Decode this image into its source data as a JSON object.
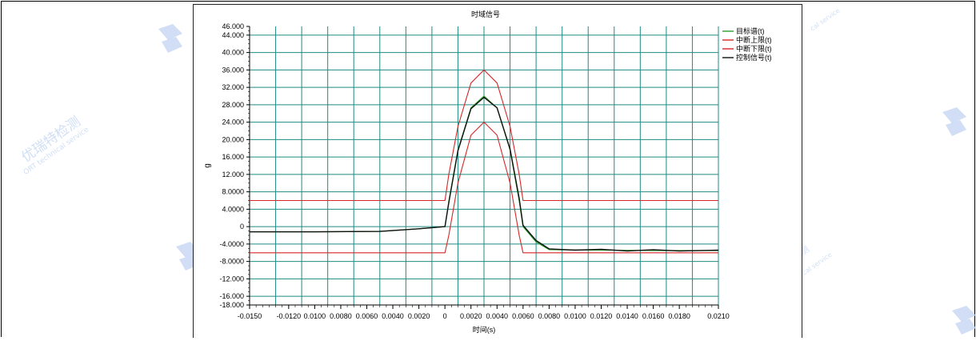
{
  "watermark": {
    "company_cn": "优瑞特检测",
    "company_en": "ORT technical service",
    "short_cn": "检测",
    "short_en": "cal service"
  },
  "colors": {
    "plot_bg": "#ffffff",
    "grid": "#1f8b85",
    "target": "#2ca02c",
    "upper": "#d62728",
    "lower": "#d62728",
    "control": "#111111",
    "watermark": "#c5d6f2"
  },
  "chart_data": {
    "type": "line",
    "title": "时域信号",
    "xlabel": "时间(s)",
    "ylabel": "g",
    "xlim": [
      -0.015,
      0.021
    ],
    "ylim": [
      -18,
      46
    ],
    "grid": true,
    "legend_position": "top-right",
    "x_tick_labels": [
      "-0.0150",
      "-0.0120",
      "0.0100",
      "0.0080",
      "0.0060",
      "0.0040",
      "0.0020",
      "0",
      "0.0020",
      "0.0040",
      "0.0060",
      "0.0080",
      "0.0100",
      "0.0120",
      "0.0140",
      "0.0160",
      "0.0180",
      "0.0210"
    ],
    "y_tick_labels": [
      "46.000",
      "44.000",
      "40.000",
      "36.000",
      "32.000",
      "28.000",
      "24.000",
      "20.000",
      "16.000",
      "12.000",
      "8.0000",
      "4.0000",
      "0",
      "-4.0000",
      "-8.0000",
      "-12.000",
      "-16.000",
      "-18.000"
    ],
    "series": [
      {
        "name": "目标谱(t)",
        "values": [
          [
            -0.015,
            -1.2
          ],
          [
            -0.01,
            -1.2
          ],
          [
            -0.005,
            -1.1
          ],
          [
            -0.002,
            -0.5
          ],
          [
            0,
            0
          ],
          [
            0.0003,
            5.8
          ],
          [
            0.001,
            17.6
          ],
          [
            0.002,
            27.3
          ],
          [
            0.003,
            30
          ],
          [
            0.004,
            27.3
          ],
          [
            0.005,
            17.6
          ],
          [
            0.0057,
            5.9
          ],
          [
            0.006,
            0
          ],
          [
            0.007,
            -3.5
          ],
          [
            0.008,
            -5.3
          ],
          [
            0.012,
            -5.4
          ],
          [
            0.016,
            -5.5
          ],
          [
            0.021,
            -5.5
          ]
        ]
      },
      {
        "name": "中断上限(t)",
        "values": [
          [
            -0.015,
            6
          ],
          [
            0,
            6
          ],
          [
            0.0003,
            12
          ],
          [
            0.001,
            23
          ],
          [
            0.002,
            33
          ],
          [
            0.003,
            36
          ],
          [
            0.004,
            33
          ],
          [
            0.005,
            23
          ],
          [
            0.0057,
            12
          ],
          [
            0.006,
            6
          ],
          [
            0.021,
            6
          ]
        ]
      },
      {
        "name": "中断下限(t)",
        "values": [
          [
            -0.015,
            -6
          ],
          [
            0,
            -6
          ],
          [
            0.0003,
            -2
          ],
          [
            0.001,
            10
          ],
          [
            0.002,
            21
          ],
          [
            0.003,
            24
          ],
          [
            0.004,
            21
          ],
          [
            0.005,
            10
          ],
          [
            0.0057,
            -2
          ],
          [
            0.006,
            -6
          ],
          [
            0.021,
            -6
          ]
        ]
      },
      {
        "name": "控制信号(t)",
        "values": [
          [
            -0.015,
            -1.2
          ],
          [
            -0.01,
            -1.2
          ],
          [
            -0.005,
            -1.1
          ],
          [
            -0.002,
            -0.5
          ],
          [
            0,
            0
          ],
          [
            0.0003,
            5.5
          ],
          [
            0.001,
            17.4
          ],
          [
            0.002,
            27.1
          ],
          [
            0.003,
            29.7
          ],
          [
            0.004,
            27.3
          ],
          [
            0.005,
            17.8
          ],
          [
            0.0057,
            6.5
          ],
          [
            0.006,
            0.3
          ],
          [
            0.007,
            -3.2
          ],
          [
            0.008,
            -5.1
          ],
          [
            0.01,
            -5.4
          ],
          [
            0.012,
            -5.2
          ],
          [
            0.014,
            -5.6
          ],
          [
            0.016,
            -5.3
          ],
          [
            0.018,
            -5.6
          ],
          [
            0.021,
            -5.4
          ]
        ]
      }
    ]
  }
}
